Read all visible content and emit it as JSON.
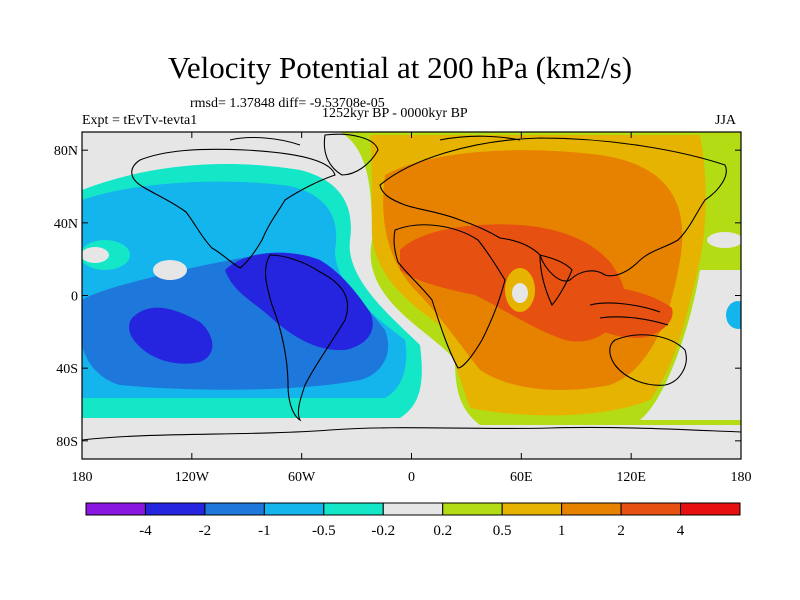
{
  "title": "Velocity Potential at 200 hPa (km2/s)",
  "stats": "rmsd= 1.37848 diff= -9.53708e-05",
  "experiment": "Expt = tEvTv-tevta1",
  "period": "1252kyr BP - 0000kyr BP",
  "season": "JJA",
  "map": {
    "projection": "cylindrical equidistant",
    "lon_range": [
      -180,
      180
    ],
    "lat_range": [
      -90,
      90
    ],
    "lat_ticks": [
      {
        "value": 80,
        "label": "80N"
      },
      {
        "value": 40,
        "label": "40N"
      },
      {
        "value": 0,
        "label": "0"
      },
      {
        "value": -40,
        "label": "40S"
      },
      {
        "value": -80,
        "label": "80S"
      }
    ],
    "lon_ticks": [
      {
        "value": -180,
        "label": "180"
      },
      {
        "value": -120,
        "label": "120W"
      },
      {
        "value": -60,
        "label": "60W"
      },
      {
        "value": 0,
        "label": "0"
      },
      {
        "value": 60,
        "label": "60E"
      },
      {
        "value": 120,
        "label": "120E"
      },
      {
        "value": 180,
        "label": "180"
      }
    ]
  },
  "colorbar": {
    "colors": [
      "#8a17e0",
      "#2525e0",
      "#1e78dc",
      "#14b4ec",
      "#14e6c8",
      "#e6e6e6",
      "#b4dc14",
      "#e6b400",
      "#e68200",
      "#e65010",
      "#e61010"
    ],
    "labels": [
      "-4",
      "-2",
      "-1",
      "-0.5",
      "-0.2",
      "0.2",
      "0.5",
      "1",
      "2",
      "4"
    ]
  },
  "field_colors": {
    "bg": "#b4dc14",
    "neutral": "#e6e6e6",
    "neg1": "#14e6c8",
    "neg2": "#14b4ec",
    "neg3": "#1e78dc",
    "neg4": "#2525e0",
    "pos1": "#e6b400",
    "pos2": "#e68200",
    "pos3": "#e65010"
  }
}
